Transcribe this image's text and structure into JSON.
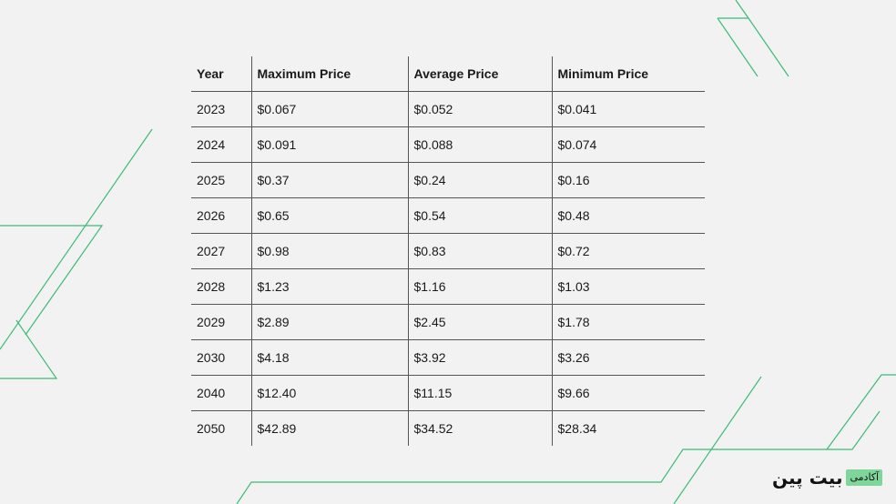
{
  "colors": {
    "background": "#f2f2f2",
    "accent_line": "#3dbb78",
    "rule": "#555555",
    "logo_badge": "#7fd69a"
  },
  "chart_data": {
    "type": "table",
    "columns": [
      "Year",
      "Maximum Price",
      "Average Price",
      "Minimum Price"
    ],
    "rows": [
      [
        "2023",
        "$0.067",
        "$0.052",
        "$0.041"
      ],
      [
        "2024",
        "$0.091",
        "$0.088",
        "$0.074"
      ],
      [
        "2025",
        "$0.37",
        "$0.24",
        "$0.16"
      ],
      [
        "2026",
        "$0.65",
        "$0.54",
        "$0.48"
      ],
      [
        "2027",
        "$0.98",
        "$0.83",
        "$0.72"
      ],
      [
        "2028",
        "$1.23",
        "$1.16",
        "$1.03"
      ],
      [
        "2029",
        "$2.89",
        "$2.45",
        "$1.78"
      ],
      [
        "2030",
        "$4.18",
        "$3.92",
        "$3.26"
      ],
      [
        "2040",
        "$12.40",
        "$11.15",
        "$9.66"
      ],
      [
        "2050",
        "$42.89",
        "$34.52",
        "$28.34"
      ]
    ]
  },
  "logo": {
    "name": "بیت پین",
    "badge": "آکادمی"
  }
}
